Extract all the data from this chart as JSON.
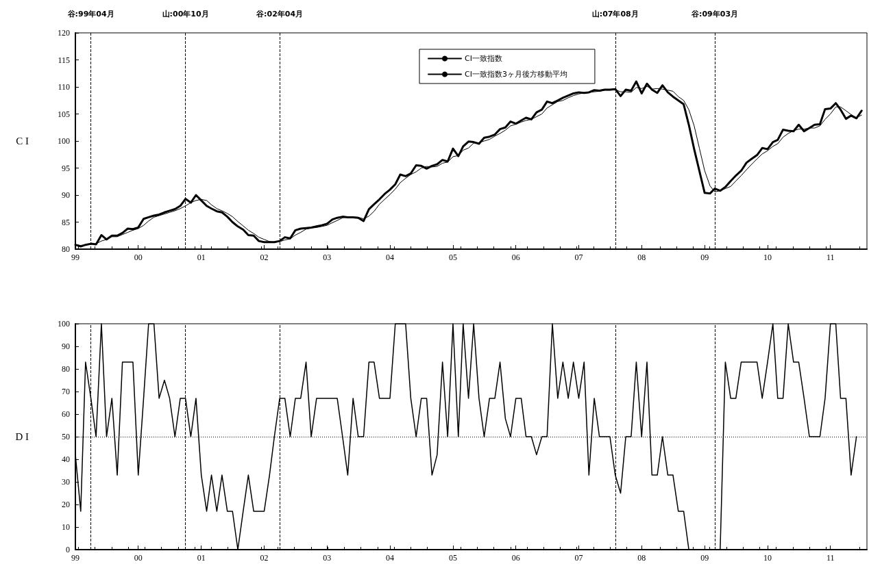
{
  "chart_data": [
    {
      "type": "line",
      "ylabel": "C I",
      "ylim": [
        80,
        120
      ],
      "yticks": [
        80,
        85,
        90,
        95,
        100,
        105,
        110,
        115,
        120
      ],
      "xlim": [
        "1999-01",
        "2011-08"
      ],
      "xticks": [
        {
          "value": "1999-01",
          "label": "99"
        },
        {
          "value": "2000-01",
          "label": "00"
        },
        {
          "value": "2001-01",
          "label": "01"
        },
        {
          "value": "2002-01",
          "label": "02"
        },
        {
          "value": "2003-01",
          "label": "03"
        },
        {
          "value": "2004-01",
          "label": "04"
        },
        {
          "value": "2005-01",
          "label": "05"
        },
        {
          "value": "2006-01",
          "label": "06"
        },
        {
          "value": "2007-01",
          "label": "07"
        },
        {
          "value": "2008-01",
          "label": "08"
        },
        {
          "value": "2009-01",
          "label": "09"
        },
        {
          "value": "2010-01",
          "label": "10"
        },
        {
          "value": "2011-01",
          "label": "11"
        }
      ],
      "x": [
        "1999-01",
        "1999-02",
        "1999-03",
        "1999-04",
        "1999-05",
        "1999-06",
        "1999-07",
        "1999-08",
        "1999-09",
        "1999-10",
        "1999-11",
        "1999-12",
        "2000-01",
        "2000-02",
        "2000-03",
        "2000-04",
        "2000-05",
        "2000-06",
        "2000-07",
        "2000-08",
        "2000-09",
        "2000-10",
        "2000-11",
        "2000-12",
        "2001-01",
        "2001-02",
        "2001-03",
        "2001-04",
        "2001-05",
        "2001-06",
        "2001-07",
        "2001-08",
        "2001-09",
        "2001-10",
        "2001-11",
        "2001-12",
        "2002-01",
        "2002-02",
        "2002-03",
        "2002-04",
        "2002-05",
        "2002-06",
        "2002-07",
        "2002-08",
        "2002-09",
        "2002-10",
        "2002-11",
        "2002-12",
        "2003-01",
        "2003-02",
        "2003-03",
        "2003-04",
        "2003-05",
        "2003-06",
        "2003-07",
        "2003-08",
        "2003-09",
        "2003-10",
        "2003-11",
        "2003-12",
        "2004-01",
        "2004-02",
        "2004-03",
        "2004-04",
        "2004-05",
        "2004-06",
        "2004-07",
        "2004-08",
        "2004-09",
        "2004-10",
        "2004-11",
        "2004-12",
        "2005-01",
        "2005-02",
        "2005-03",
        "2005-04",
        "2005-05",
        "2005-06",
        "2005-07",
        "2005-08",
        "2005-09",
        "2005-10",
        "2005-11",
        "2005-12",
        "2006-01",
        "2006-02",
        "2006-03",
        "2006-04",
        "2006-05",
        "2006-06",
        "2006-07",
        "2006-08",
        "2006-09",
        "2006-10",
        "2006-11",
        "2006-12",
        "2007-01",
        "2007-02",
        "2007-03",
        "2007-04",
        "2007-05",
        "2007-06",
        "2007-07",
        "2007-08",
        "2007-09",
        "2007-10",
        "2007-11",
        "2007-12",
        "2008-01",
        "2008-02",
        "2008-03",
        "2008-04",
        "2008-05",
        "2008-06",
        "2008-07",
        "2008-08",
        "2008-09",
        "2008-10",
        "2008-11",
        "2008-12",
        "2009-01",
        "2009-02",
        "2009-03",
        "2009-04",
        "2009-05",
        "2009-06",
        "2009-07",
        "2009-08",
        "2009-09",
        "2009-10",
        "2009-11",
        "2009-12",
        "2010-01",
        "2010-02",
        "2010-03",
        "2010-04",
        "2010-05",
        "2010-06",
        "2010-07",
        "2010-08",
        "2010-09",
        "2010-10",
        "2010-11",
        "2010-12",
        "2011-01",
        "2011-02",
        "2011-03",
        "2011-04",
        "2011-05",
        "2011-06",
        "2011-07"
      ],
      "series": [
        {
          "name": "CI一致指数",
          "color": "#000000",
          "values": [
            80.8,
            80.5,
            80.8,
            81.0,
            80.9,
            82.6,
            81.8,
            82.5,
            82.5,
            83.0,
            83.8,
            83.7,
            84.0,
            85.6,
            85.9,
            86.2,
            86.4,
            86.8,
            87.1,
            87.4,
            88.0,
            89.3,
            88.6,
            90.0,
            89.0,
            88.0,
            87.5,
            87.0,
            86.8,
            86.0,
            85.0,
            84.2,
            83.6,
            82.6,
            82.5,
            81.5,
            81.3,
            81.3,
            81.3,
            81.5,
            82.2,
            82.0,
            83.5,
            83.8,
            83.9,
            84.0,
            84.2,
            84.4,
            84.7,
            85.5,
            85.8,
            86.0,
            85.9,
            85.9,
            85.8,
            85.2,
            87.4,
            88.3,
            89.2,
            90.2,
            91.0,
            92.0,
            93.8,
            93.5,
            94.0,
            95.5,
            95.4,
            94.9,
            95.4,
            95.7,
            96.5,
            96.2,
            98.6,
            97.2,
            99.0,
            99.9,
            99.8,
            99.5,
            100.6,
            100.8,
            101.2,
            102.2,
            102.5,
            103.6,
            103.2,
            103.8,
            104.3,
            104.0,
            105.3,
            105.8,
            107.3,
            107.0,
            107.5,
            108.0,
            108.4,
            108.8,
            109.0,
            108.9,
            109.0,
            109.4,
            109.3,
            109.5,
            109.5,
            109.6,
            108.3,
            109.5,
            109.3,
            111.0,
            108.8,
            110.6,
            109.5,
            108.9,
            110.3,
            109.0,
            108.2,
            107.5,
            106.8,
            103.0,
            98.5,
            94.5,
            90.4,
            90.3,
            91.2,
            90.8,
            91.5,
            92.6,
            93.6,
            94.5,
            96.0,
            96.7,
            97.4,
            98.7,
            98.5,
            99.8,
            100.2,
            102.1,
            101.9,
            101.8,
            103.0,
            101.8,
            102.4,
            103.0,
            103.1,
            105.9,
            106.0,
            107.0,
            105.8,
            104.1,
            104.7,
            104.2,
            105.6
          ]
        },
        {
          "name": "CI一致指数3ヶ月後方移動平均",
          "color": "#000000",
          "values": [
            80.8,
            80.7,
            80.8,
            80.9,
            81.0,
            81.5,
            81.8,
            82.3,
            82.3,
            82.7,
            83.1,
            83.5,
            83.8,
            84.4,
            85.2,
            85.9,
            86.2,
            86.5,
            86.8,
            87.1,
            87.5,
            88.0,
            88.6,
            89.0,
            89.2,
            89.0,
            88.2,
            87.5,
            87.1,
            86.6,
            86.0,
            85.1,
            84.3,
            83.5,
            82.9,
            82.2,
            81.8,
            81.4,
            81.3,
            81.4,
            81.7,
            81.9,
            82.6,
            83.1,
            83.7,
            83.9,
            84.0,
            84.2,
            84.4,
            84.9,
            85.3,
            85.8,
            85.9,
            85.9,
            85.9,
            85.6,
            86.1,
            87.0,
            88.3,
            89.2,
            90.1,
            91.1,
            92.3,
            93.1,
            93.8,
            94.3,
            95.0,
            95.3,
            95.2,
            95.3,
            95.9,
            96.1,
            97.1,
            97.3,
            98.3,
            98.7,
            99.6,
            99.7,
            100.0,
            100.3,
            100.9,
            101.4,
            102.0,
            102.8,
            103.1,
            103.5,
            103.8,
            104.0,
            104.5,
            105.0,
            106.1,
            106.7,
            107.3,
            107.5,
            108.0,
            108.4,
            108.7,
            108.9,
            109.0,
            109.1,
            109.2,
            109.4,
            109.4,
            109.5,
            109.1,
            109.1,
            109.0,
            109.9,
            109.7,
            110.1,
            109.6,
            109.7,
            109.6,
            109.4,
            109.2,
            108.2,
            107.5,
            105.8,
            102.8,
            98.7,
            94.5,
            91.7,
            90.6,
            90.8,
            91.2,
            91.6,
            92.6,
            93.6,
            94.7,
            95.7,
            96.7,
            97.6,
            98.2,
            99.0,
            99.5,
            100.7,
            101.4,
            101.9,
            102.2,
            102.2,
            102.4,
            102.4,
            102.8,
            104.0,
            105.0,
            106.3,
            106.3,
            105.6,
            104.9,
            104.3,
            104.8
          ]
        }
      ],
      "ref_lines": [
        {
          "axis": "x",
          "value": "1999-04",
          "label": "谷:99年04月",
          "line_style": "dashed"
        },
        {
          "axis": "x",
          "value": "2000-10",
          "label": "山:00年10月",
          "line_style": "dashed"
        },
        {
          "axis": "x",
          "value": "2002-04",
          "label": "谷:02年04月",
          "line_style": "dashed"
        },
        {
          "axis": "x",
          "value": "2007-08",
          "label": "山:07年08月",
          "line_style": "dashed"
        },
        {
          "axis": "x",
          "value": "2009-03",
          "label": "谷:09年03月",
          "line_style": "dashed"
        }
      ],
      "legend": "top",
      "line_style": "solid"
    },
    {
      "type": "line",
      "ylabel": "D I",
      "ylim": [
        0,
        100
      ],
      "yticks": [
        0,
        10,
        20,
        30,
        40,
        50,
        60,
        70,
        80,
        90,
        100
      ],
      "xlim": [
        "1999-01",
        "2011-08"
      ],
      "xticks": [
        {
          "value": "1999-01",
          "label": "99"
        },
        {
          "value": "2000-01",
          "label": "00"
        },
        {
          "value": "2001-01",
          "label": "01"
        },
        {
          "value": "2002-01",
          "label": "02"
        },
        {
          "value": "2003-01",
          "label": "03"
        },
        {
          "value": "2004-01",
          "label": "04"
        },
        {
          "value": "2005-01",
          "label": "05"
        },
        {
          "value": "2006-01",
          "label": "06"
        },
        {
          "value": "2007-01",
          "label": "07"
        },
        {
          "value": "2008-01",
          "label": "08"
        },
        {
          "value": "2009-01",
          "label": "09"
        },
        {
          "value": "2010-01",
          "label": "10"
        },
        {
          "value": "2011-01",
          "label": "11"
        }
      ],
      "x": [
        "1999-01",
        "1999-02",
        "1999-03",
        "1999-04",
        "1999-05",
        "1999-06",
        "1999-07",
        "1999-08",
        "1999-09",
        "1999-10",
        "1999-11",
        "1999-12",
        "2000-01",
        "2000-02",
        "2000-03",
        "2000-04",
        "2000-05",
        "2000-06",
        "2000-07",
        "2000-08",
        "2000-09",
        "2000-10",
        "2000-11",
        "2000-12",
        "2001-01",
        "2001-02",
        "2001-03",
        "2001-04",
        "2001-05",
        "2001-06",
        "2001-07",
        "2001-08",
        "2001-09",
        "2001-10",
        "2001-11",
        "2001-12",
        "2002-01",
        "2002-02",
        "2002-03",
        "2002-04",
        "2002-05",
        "2002-06",
        "2002-07",
        "2002-08",
        "2002-09",
        "2002-10",
        "2002-11",
        "2002-12",
        "2003-01",
        "2003-02",
        "2003-03",
        "2003-04",
        "2003-05",
        "2003-06",
        "2003-07",
        "2003-08",
        "2003-09",
        "2003-10",
        "2003-11",
        "2003-12",
        "2004-01",
        "2004-02",
        "2004-03",
        "2004-04",
        "2004-05",
        "2004-06",
        "2004-07",
        "2004-08",
        "2004-09",
        "2004-10",
        "2004-11",
        "2004-12",
        "2005-01",
        "2005-02",
        "2005-03",
        "2005-04",
        "2005-05",
        "2005-06",
        "2005-07",
        "2005-08",
        "2005-09",
        "2005-10",
        "2005-11",
        "2005-12",
        "2006-01",
        "2006-02",
        "2006-03",
        "2006-04",
        "2006-05",
        "2006-06",
        "2006-07",
        "2006-08",
        "2006-09",
        "2006-10",
        "2006-11",
        "2006-12",
        "2007-01",
        "2007-02",
        "2007-03",
        "2007-04",
        "2007-05",
        "2007-06",
        "2007-07",
        "2007-08",
        "2007-09",
        "2007-10",
        "2007-11",
        "2007-12",
        "2008-01",
        "2008-02",
        "2008-03",
        "2008-04",
        "2008-05",
        "2008-06",
        "2008-07",
        "2008-08",
        "2008-09",
        "2008-10",
        "2008-11",
        "2008-12",
        "2009-01",
        "2009-02",
        "2009-03",
        "2009-04",
        "2009-05",
        "2009-06",
        "2009-07",
        "2009-08",
        "2009-09",
        "2009-10",
        "2009-11",
        "2009-12",
        "2010-01",
        "2010-02",
        "2010-03",
        "2010-04",
        "2010-05",
        "2010-06",
        "2010-07",
        "2010-08",
        "2010-09",
        "2010-10",
        "2010-11",
        "2010-12",
        "2011-01",
        "2011-02",
        "2011-03",
        "2011-04",
        "2011-05",
        "2011-06"
      ],
      "series": [
        {
          "color": "#000000",
          "values": [
            42,
            17,
            83,
            67,
            50,
            100,
            50,
            67,
            33,
            83,
            83,
            83,
            33,
            67,
            100,
            100,
            67,
            75,
            67,
            50,
            67,
            67,
            50,
            67,
            33,
            17,
            33,
            17,
            33,
            17,
            17,
            0,
            17,
            33,
            17,
            17,
            17,
            33,
            50,
            67,
            67,
            50,
            67,
            67,
            83,
            50,
            67,
            67,
            67,
            67,
            67,
            50,
            33,
            67,
            50,
            50,
            83,
            83,
            67,
            67,
            67,
            100,
            100,
            100,
            67,
            50,
            67,
            67,
            33,
            42,
            83,
            50,
            100,
            50,
            100,
            67,
            100,
            67,
            50,
            67,
            67,
            83,
            58,
            50,
            67,
            67,
            50,
            50,
            42,
            50,
            50,
            100,
            67,
            83,
            67,
            83,
            67,
            83,
            33,
            67,
            50,
            50,
            50,
            33,
            25,
            50,
            50,
            83,
            50,
            83,
            33,
            33,
            50,
            33,
            33,
            17,
            17,
            0,
            0,
            0,
            0,
            0,
            0,
            0,
            83,
            67,
            67,
            83,
            83,
            83,
            83,
            67,
            83,
            100,
            67,
            67,
            100,
            83,
            83,
            67,
            50,
            50,
            50,
            67,
            100,
            100,
            67,
            67,
            33,
            50
          ]
        }
      ],
      "ref_lines": [
        {
          "axis": "y",
          "value": 50,
          "line_style": "dotted"
        },
        {
          "axis": "x",
          "value": "1999-04",
          "line_style": "dashed"
        },
        {
          "axis": "x",
          "value": "2000-10",
          "line_style": "dashed"
        },
        {
          "axis": "x",
          "value": "2002-04",
          "line_style": "dashed"
        },
        {
          "axis": "x",
          "value": "2007-08",
          "line_style": "dashed"
        },
        {
          "axis": "x",
          "value": "2009-03",
          "line_style": "dashed"
        }
      ],
      "line_style": "solid"
    }
  ]
}
